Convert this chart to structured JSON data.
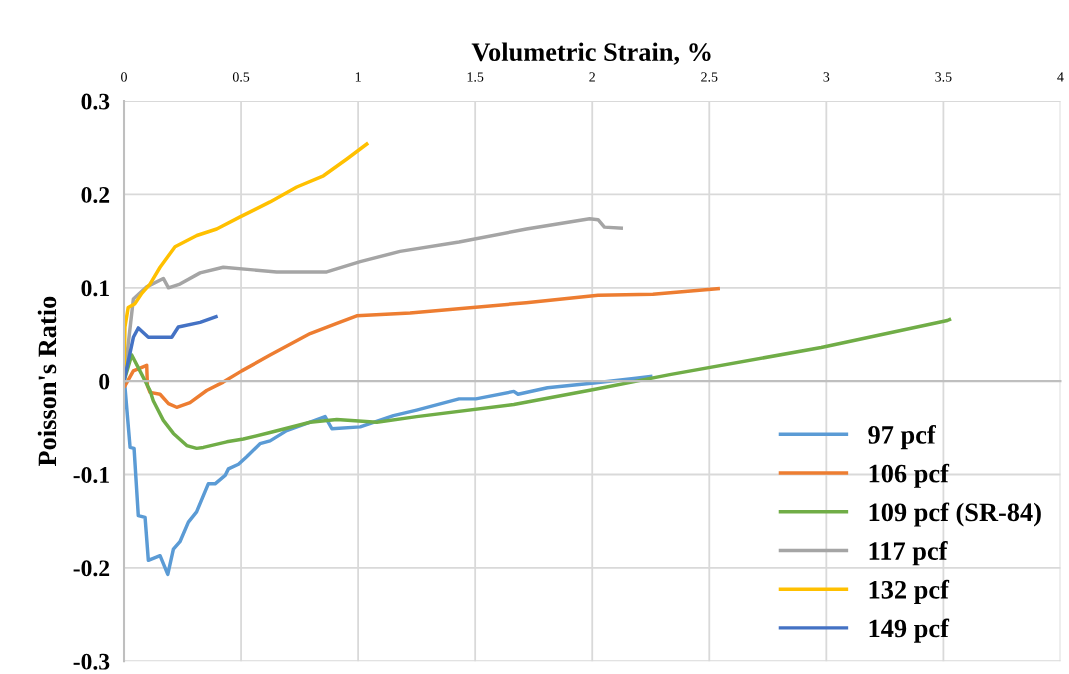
{
  "chart_data": {
    "type": "line",
    "xlabel": "Volumetric Strain, %",
    "ylabel": "Poisson's Ratio",
    "xlim": [
      0,
      4
    ],
    "xticks": [
      0,
      0.5,
      1,
      1.5,
      2,
      2.5,
      3,
      3.5,
      4
    ],
    "ylim": [
      -0.3,
      0.3
    ],
    "yticks": [
      -0.3,
      -0.2,
      -0.1,
      0,
      0.1,
      0.2,
      0.3
    ],
    "grid": true,
    "legend": "bottom right",
    "marker": "none",
    "line_style": "solid",
    "series": [
      {
        "name": "97 pcf",
        "color": "#5b9bd5",
        "x": [
          0.004,
          0.026,
          0.043,
          0.061,
          0.09,
          0.104,
          0.154,
          0.187,
          0.211,
          0.239,
          0.275,
          0.31,
          0.36,
          0.389,
          0.432,
          0.446,
          0.489,
          0.524,
          0.581,
          0.624,
          0.695,
          0.795,
          0.859,
          0.888,
          1.009,
          1.151,
          1.25,
          1.431,
          1.503,
          1.665,
          1.683,
          1.809,
          2.007,
          2.187,
          2.25
        ],
        "values": [
          -0.006,
          -0.071,
          -0.072,
          -0.144,
          -0.146,
          -0.192,
          -0.187,
          -0.207,
          -0.18,
          -0.172,
          -0.151,
          -0.14,
          -0.11,
          -0.11,
          -0.101,
          -0.094,
          -0.089,
          -0.081,
          -0.067,
          -0.064,
          -0.053,
          -0.044,
          -0.038,
          -0.051,
          -0.049,
          -0.037,
          -0.031,
          -0.019,
          -0.019,
          -0.011,
          -0.014,
          -0.007,
          -0.002,
          0.003,
          0.005
        ]
      },
      {
        "name": "106 pcf",
        "color": "#ed7d31",
        "x": [
          0.004,
          0.04,
          0.097,
          0.1,
          0.111,
          0.154,
          0.19,
          0.225,
          0.282,
          0.353,
          0.424,
          0.503,
          0.624,
          0.795,
          0.909,
          0.994,
          1.222,
          1.718,
          2.025,
          2.259,
          2.538
        ],
        "values": [
          -0.005,
          0.011,
          0.017,
          -0.005,
          -0.012,
          -0.014,
          -0.024,
          -0.028,
          -0.023,
          -0.01,
          -0.001,
          0.011,
          0.028,
          0.051,
          0.062,
          0.07,
          0.073,
          0.084,
          0.092,
          0.093,
          0.099
        ]
      },
      {
        "name": "109 pcf (SR-84)",
        "color": "#70ad47",
        "x": [
          0.0,
          0.033,
          0.068,
          0.111,
          0.125,
          0.168,
          0.211,
          0.268,
          0.31,
          0.339,
          0.439,
          0.51,
          0.624,
          0.795,
          0.909,
          1.08,
          1.25,
          1.665,
          2.007,
          2.331,
          2.978,
          3.517,
          3.526
        ],
        "values": [
          0.0,
          0.028,
          0.011,
          -0.01,
          -0.021,
          -0.042,
          -0.056,
          -0.069,
          -0.072,
          -0.071,
          -0.065,
          -0.062,
          -0.055,
          -0.044,
          -0.041,
          -0.044,
          -0.038,
          -0.025,
          -0.009,
          0.007,
          0.036,
          0.065,
          0.066
        ]
      },
      {
        "name": "117 pcf",
        "color": "#a5a5a5",
        "x": [
          0.0,
          0.04,
          0.097,
          0.168,
          0.19,
          0.239,
          0.325,
          0.424,
          0.652,
          0.866,
          1.009,
          1.179,
          1.431,
          1.719,
          1.989,
          2.025,
          2.052,
          2.124
        ],
        "values": [
          0.0,
          0.088,
          0.101,
          0.11,
          0.1,
          0.104,
          0.116,
          0.122,
          0.117,
          0.117,
          0.128,
          0.139,
          0.149,
          0.163,
          0.174,
          0.173,
          0.165,
          0.164
        ]
      },
      {
        "name": "132 pcf",
        "color": "#ffc000",
        "x": [
          0.0,
          0.004,
          0.018,
          0.047,
          0.076,
          0.111,
          0.154,
          0.218,
          0.311,
          0.396,
          0.496,
          0.624,
          0.738,
          0.852,
          0.952,
          1.037
        ],
        "values": [
          0.0,
          0.058,
          0.079,
          0.083,
          0.094,
          0.104,
          0.122,
          0.144,
          0.156,
          0.163,
          0.176,
          0.192,
          0.208,
          0.22,
          0.238,
          0.254
        ]
      },
      {
        "name": "149 pcf",
        "color": "#4472c4",
        "x": [
          0.0,
          0.04,
          0.061,
          0.104,
          0.204,
          0.232,
          0.325,
          0.393
        ],
        "values": [
          0.0,
          0.047,
          0.057,
          0.047,
          0.047,
          0.058,
          0.063,
          0.069
        ]
      }
    ]
  }
}
